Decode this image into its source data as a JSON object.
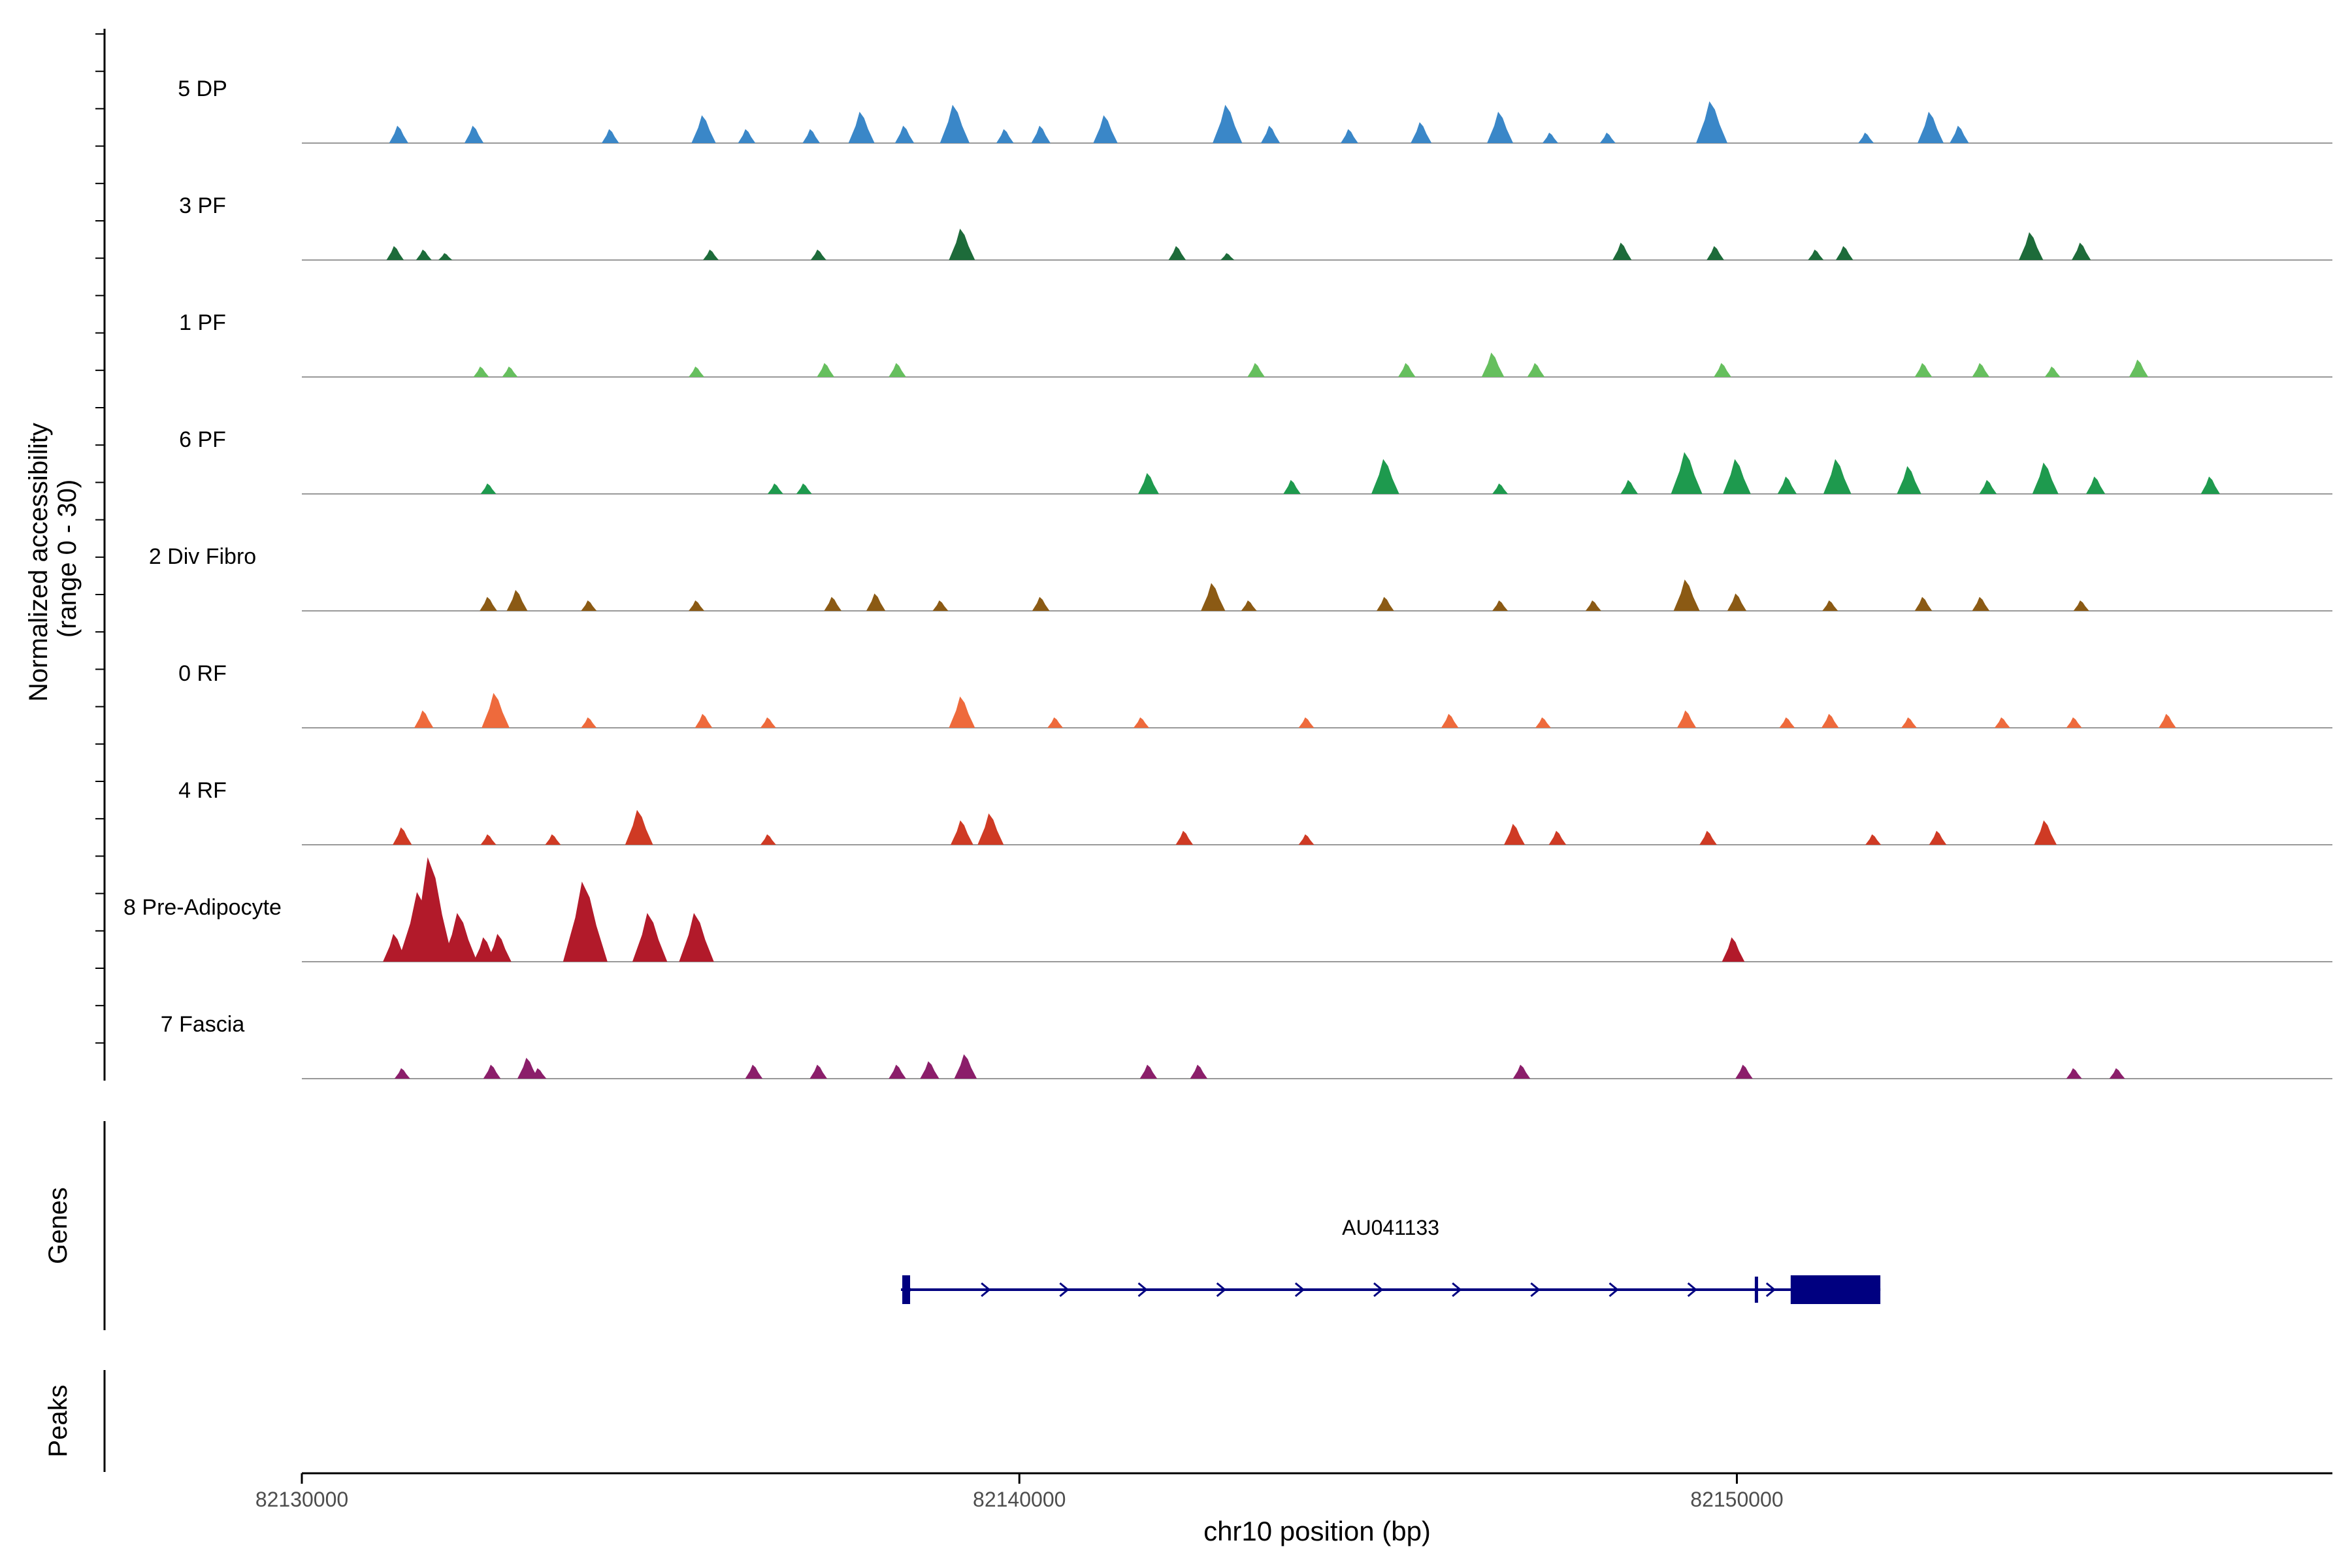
{
  "chart_data": {
    "type": "area",
    "title": "",
    "xlabel": "chr10 position (bp)",
    "ylabel_line1": "Normalized accessibility",
    "ylabel_line2": "(range 0 - 30)",
    "ylim": [
      0,
      30
    ],
    "xlim": [
      82130000,
      82158300
    ],
    "x_ticks": [
      82130000,
      82140000,
      82150000
    ],
    "x_tick_labels": [
      "82130000",
      "82140000",
      "82150000"
    ],
    "series": [
      {
        "name": "5 DP",
        "color": "#3A87C8",
        "peaks": [
          [
            82131350,
            5
          ],
          [
            82132400,
            5
          ],
          [
            82134300,
            4
          ],
          [
            82135600,
            8
          ],
          [
            82136200,
            4
          ],
          [
            82137100,
            4
          ],
          [
            82137800,
            9
          ],
          [
            82138400,
            5
          ],
          [
            82139100,
            11
          ],
          [
            82139800,
            4
          ],
          [
            82140300,
            5
          ],
          [
            82141200,
            8
          ],
          [
            82142900,
            11
          ],
          [
            82143500,
            5
          ],
          [
            82144600,
            4
          ],
          [
            82145600,
            6
          ],
          [
            82146700,
            9
          ],
          [
            82147400,
            3
          ],
          [
            82148200,
            3
          ],
          [
            82149650,
            12
          ],
          [
            82151800,
            3
          ],
          [
            82152700,
            9
          ],
          [
            82153100,
            5
          ]
        ]
      },
      {
        "name": "3 PF",
        "color": "#1D6B3A",
        "peaks": [
          [
            82131300,
            4
          ],
          [
            82131700,
            3
          ],
          [
            82132000,
            2
          ],
          [
            82135700,
            3
          ],
          [
            82137200,
            3
          ],
          [
            82139200,
            9
          ],
          [
            82142200,
            4
          ],
          [
            82142900,
            2
          ],
          [
            82148400,
            5
          ],
          [
            82149700,
            4
          ],
          [
            82151100,
            3
          ],
          [
            82151500,
            4
          ],
          [
            82154100,
            8
          ],
          [
            82154800,
            5
          ]
        ]
      },
      {
        "name": "1 PF",
        "color": "#66BF5E",
        "peaks": [
          [
            82132500,
            3
          ],
          [
            82132900,
            3
          ],
          [
            82135500,
            3
          ],
          [
            82137300,
            4
          ],
          [
            82138300,
            4
          ],
          [
            82143300,
            4
          ],
          [
            82145400,
            4
          ],
          [
            82146600,
            7
          ],
          [
            82147200,
            4
          ],
          [
            82149800,
            4
          ],
          [
            82152600,
            4
          ],
          [
            82153400,
            4
          ],
          [
            82154400,
            3
          ],
          [
            82155600,
            5
          ]
        ]
      },
      {
        "name": "6 PF",
        "color": "#1E9A4E",
        "peaks": [
          [
            82132600,
            3
          ],
          [
            82136600,
            3
          ],
          [
            82137000,
            3
          ],
          [
            82141800,
            6
          ],
          [
            82143800,
            4
          ],
          [
            82145100,
            10
          ],
          [
            82146700,
            3
          ],
          [
            82148500,
            4
          ],
          [
            82149300,
            12
          ],
          [
            82150000,
            10
          ],
          [
            82150700,
            5
          ],
          [
            82151400,
            10
          ],
          [
            82152400,
            8
          ],
          [
            82153500,
            4
          ],
          [
            82154300,
            9
          ],
          [
            82155000,
            5
          ],
          [
            82156600,
            5
          ]
        ]
      },
      {
        "name": "2 Div Fibro",
        "color": "#8B5A14",
        "peaks": [
          [
            82132600,
            4
          ],
          [
            82133000,
            6
          ],
          [
            82134000,
            3
          ],
          [
            82135500,
            3
          ],
          [
            82137400,
            4
          ],
          [
            82138000,
            5
          ],
          [
            82138900,
            3
          ],
          [
            82140300,
            4
          ],
          [
            82142700,
            8
          ],
          [
            82143200,
            3
          ],
          [
            82145100,
            4
          ],
          [
            82146700,
            3
          ],
          [
            82148000,
            3
          ],
          [
            82149300,
            9
          ],
          [
            82150000,
            5
          ],
          [
            82151300,
            3
          ],
          [
            82152600,
            4
          ],
          [
            82153400,
            4
          ],
          [
            82154800,
            3
          ]
        ]
      },
      {
        "name": "0 RF",
        "color": "#EE6A3C",
        "peaks": [
          [
            82131700,
            5
          ],
          [
            82132700,
            10
          ],
          [
            82134000,
            3
          ],
          [
            82135600,
            4
          ],
          [
            82136500,
            3
          ],
          [
            82139200,
            9
          ],
          [
            82140500,
            3
          ],
          [
            82141700,
            3
          ],
          [
            82144000,
            3
          ],
          [
            82146000,
            4
          ],
          [
            82147300,
            3
          ],
          [
            82149300,
            5
          ],
          [
            82150700,
            3
          ],
          [
            82151300,
            4
          ],
          [
            82152400,
            3
          ],
          [
            82153700,
            3
          ],
          [
            82154700,
            3
          ],
          [
            82156000,
            4
          ]
        ]
      },
      {
        "name": "4 RF",
        "color": "#CF3A24",
        "peaks": [
          [
            82131400,
            5
          ],
          [
            82132600,
            3
          ],
          [
            82133500,
            3
          ],
          [
            82134700,
            10
          ],
          [
            82136500,
            3
          ],
          [
            82139200,
            7
          ],
          [
            82139600,
            9
          ],
          [
            82142300,
            4
          ],
          [
            82144000,
            3
          ],
          [
            82146900,
            6
          ],
          [
            82147500,
            4
          ],
          [
            82149600,
            4
          ],
          [
            82151900,
            3
          ],
          [
            82152800,
            4
          ],
          [
            82154300,
            7
          ]
        ]
      },
      {
        "name": "8 Pre-Adipocyte",
        "color": "#B21A2A",
        "peaks": [
          [
            82131300,
            8
          ],
          [
            82131650,
            20
          ],
          [
            82131800,
            30
          ],
          [
            82132200,
            14
          ],
          [
            82132550,
            7
          ],
          [
            82132750,
            8
          ],
          [
            82133950,
            23
          ],
          [
            82134850,
            14
          ],
          [
            82135500,
            14
          ],
          [
            82149950,
            7
          ]
        ]
      },
      {
        "name": "7 Fascia",
        "color": "#8B1E6A",
        "peaks": [
          [
            82131400,
            3
          ],
          [
            82132650,
            4
          ],
          [
            82133150,
            6
          ],
          [
            82133300,
            3
          ],
          [
            82136300,
            4
          ],
          [
            82137200,
            4
          ],
          [
            82138300,
            4
          ],
          [
            82138750,
            5
          ],
          [
            82139250,
            7
          ],
          [
            82141800,
            4
          ],
          [
            82142500,
            4
          ],
          [
            82147000,
            4
          ],
          [
            82150100,
            4
          ],
          [
            82154700,
            3
          ],
          [
            82155300,
            3
          ]
        ]
      }
    ]
  },
  "genes_label": "Genes",
  "peaks_label": "Peaks",
  "gene": {
    "name": "AU041133",
    "start": 82138350,
    "end": 82152000,
    "exon_start": 82150750,
    "strand": "+"
  }
}
